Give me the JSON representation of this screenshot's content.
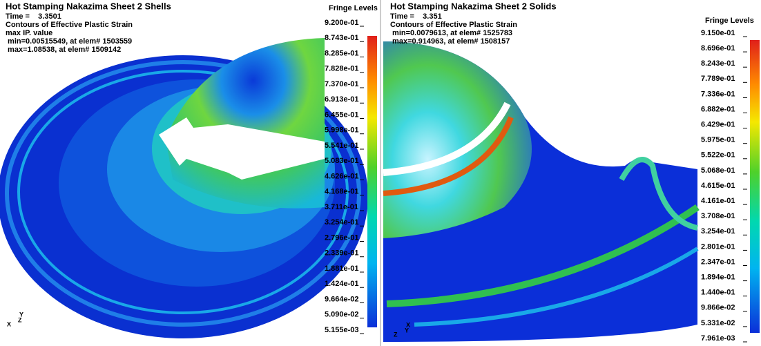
{
  "left": {
    "title": "Hot Stamping Nakazima Sheet 2 Shells",
    "info": [
      "Time =    3.3501",
      "Contours of Effective Plastic Strain",
      "max IP. value",
      " min=0.00515549, at elem# 1503559",
      " max=1.08538, at elem# 1509142"
    ],
    "legend_title": "Fringe Levels",
    "levels": [
      "9.200e-01",
      "8.743e-01",
      "8.285e-01",
      "7.828e-01",
      "7.370e-01",
      "6.913e-01",
      "6.455e-01",
      "5.998e-01",
      "5.541e-01",
      "5.083e-01",
      "4.626e-01",
      "4.168e-01",
      "3.711e-01",
      "3.254e-01",
      "2.796e-01",
      "2.339e-01",
      "1.881e-01",
      "1.424e-01",
      "9.664e-02",
      "5.090e-02",
      "5.155e-03"
    ],
    "axes": [
      "X",
      "Y",
      "Z"
    ]
  },
  "right": {
    "title": "Hot Stamping Nakazima Sheet 2 Solids",
    "info": [
      "Time =    3.351",
      "Contours of Effective Plastic Strain",
      " min=0.0079613, at elem# 1525783",
      " max=0.914963, at elem# 1508157"
    ],
    "legend_title": "Fringe Levels",
    "levels": [
      "9.150e-01",
      "8.696e-01",
      "8.243e-01",
      "7.789e-01",
      "7.336e-01",
      "6.882e-01",
      "6.429e-01",
      "5.975e-01",
      "5.522e-01",
      "5.068e-01",
      "4.615e-01",
      "4.161e-01",
      "3.708e-01",
      "3.254e-01",
      "2.801e-01",
      "2.347e-01",
      "1.894e-01",
      "1.440e-01",
      "9.866e-02",
      "5.331e-02",
      "7.961e-03"
    ],
    "axes": [
      "Z",
      "X",
      "Y"
    ]
  }
}
